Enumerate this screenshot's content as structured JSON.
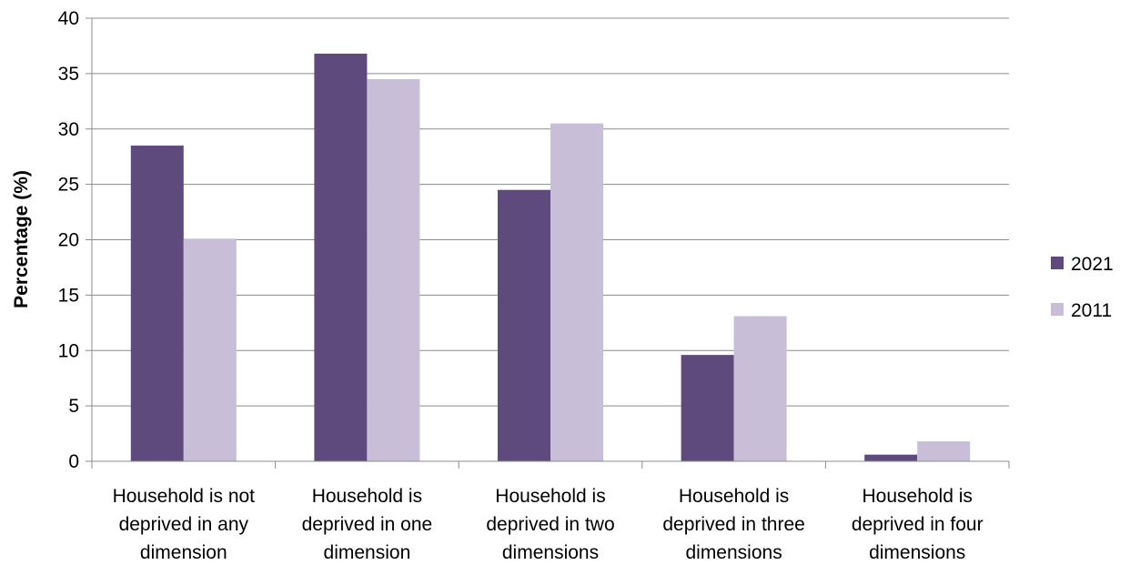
{
  "chart_data": {
    "type": "bar",
    "title": "",
    "xlabel": "",
    "ylabel": "Percentage (%)",
    "ylim": [
      0,
      40
    ],
    "yticks": [
      0,
      5,
      10,
      15,
      20,
      25,
      30,
      35,
      40
    ],
    "grid": true,
    "legend_position": "right",
    "categories": [
      [
        "Household is not",
        "deprived in any",
        "dimension"
      ],
      [
        "Household is",
        "deprived in one",
        "dimension"
      ],
      [
        "Household is",
        "deprived in two",
        "dimensions"
      ],
      [
        "Household is",
        "deprived in three",
        "dimensions"
      ],
      [
        "Household is",
        "deprived in four",
        "dimensions"
      ]
    ],
    "series": [
      {
        "name": "2021",
        "color": "#5e4a7c",
        "values": [
          28.5,
          36.8,
          24.5,
          9.6,
          0.6
        ]
      },
      {
        "name": "2011",
        "color": "#c8bed8",
        "values": [
          20.1,
          34.5,
          30.5,
          13.1,
          1.8
        ]
      }
    ]
  }
}
